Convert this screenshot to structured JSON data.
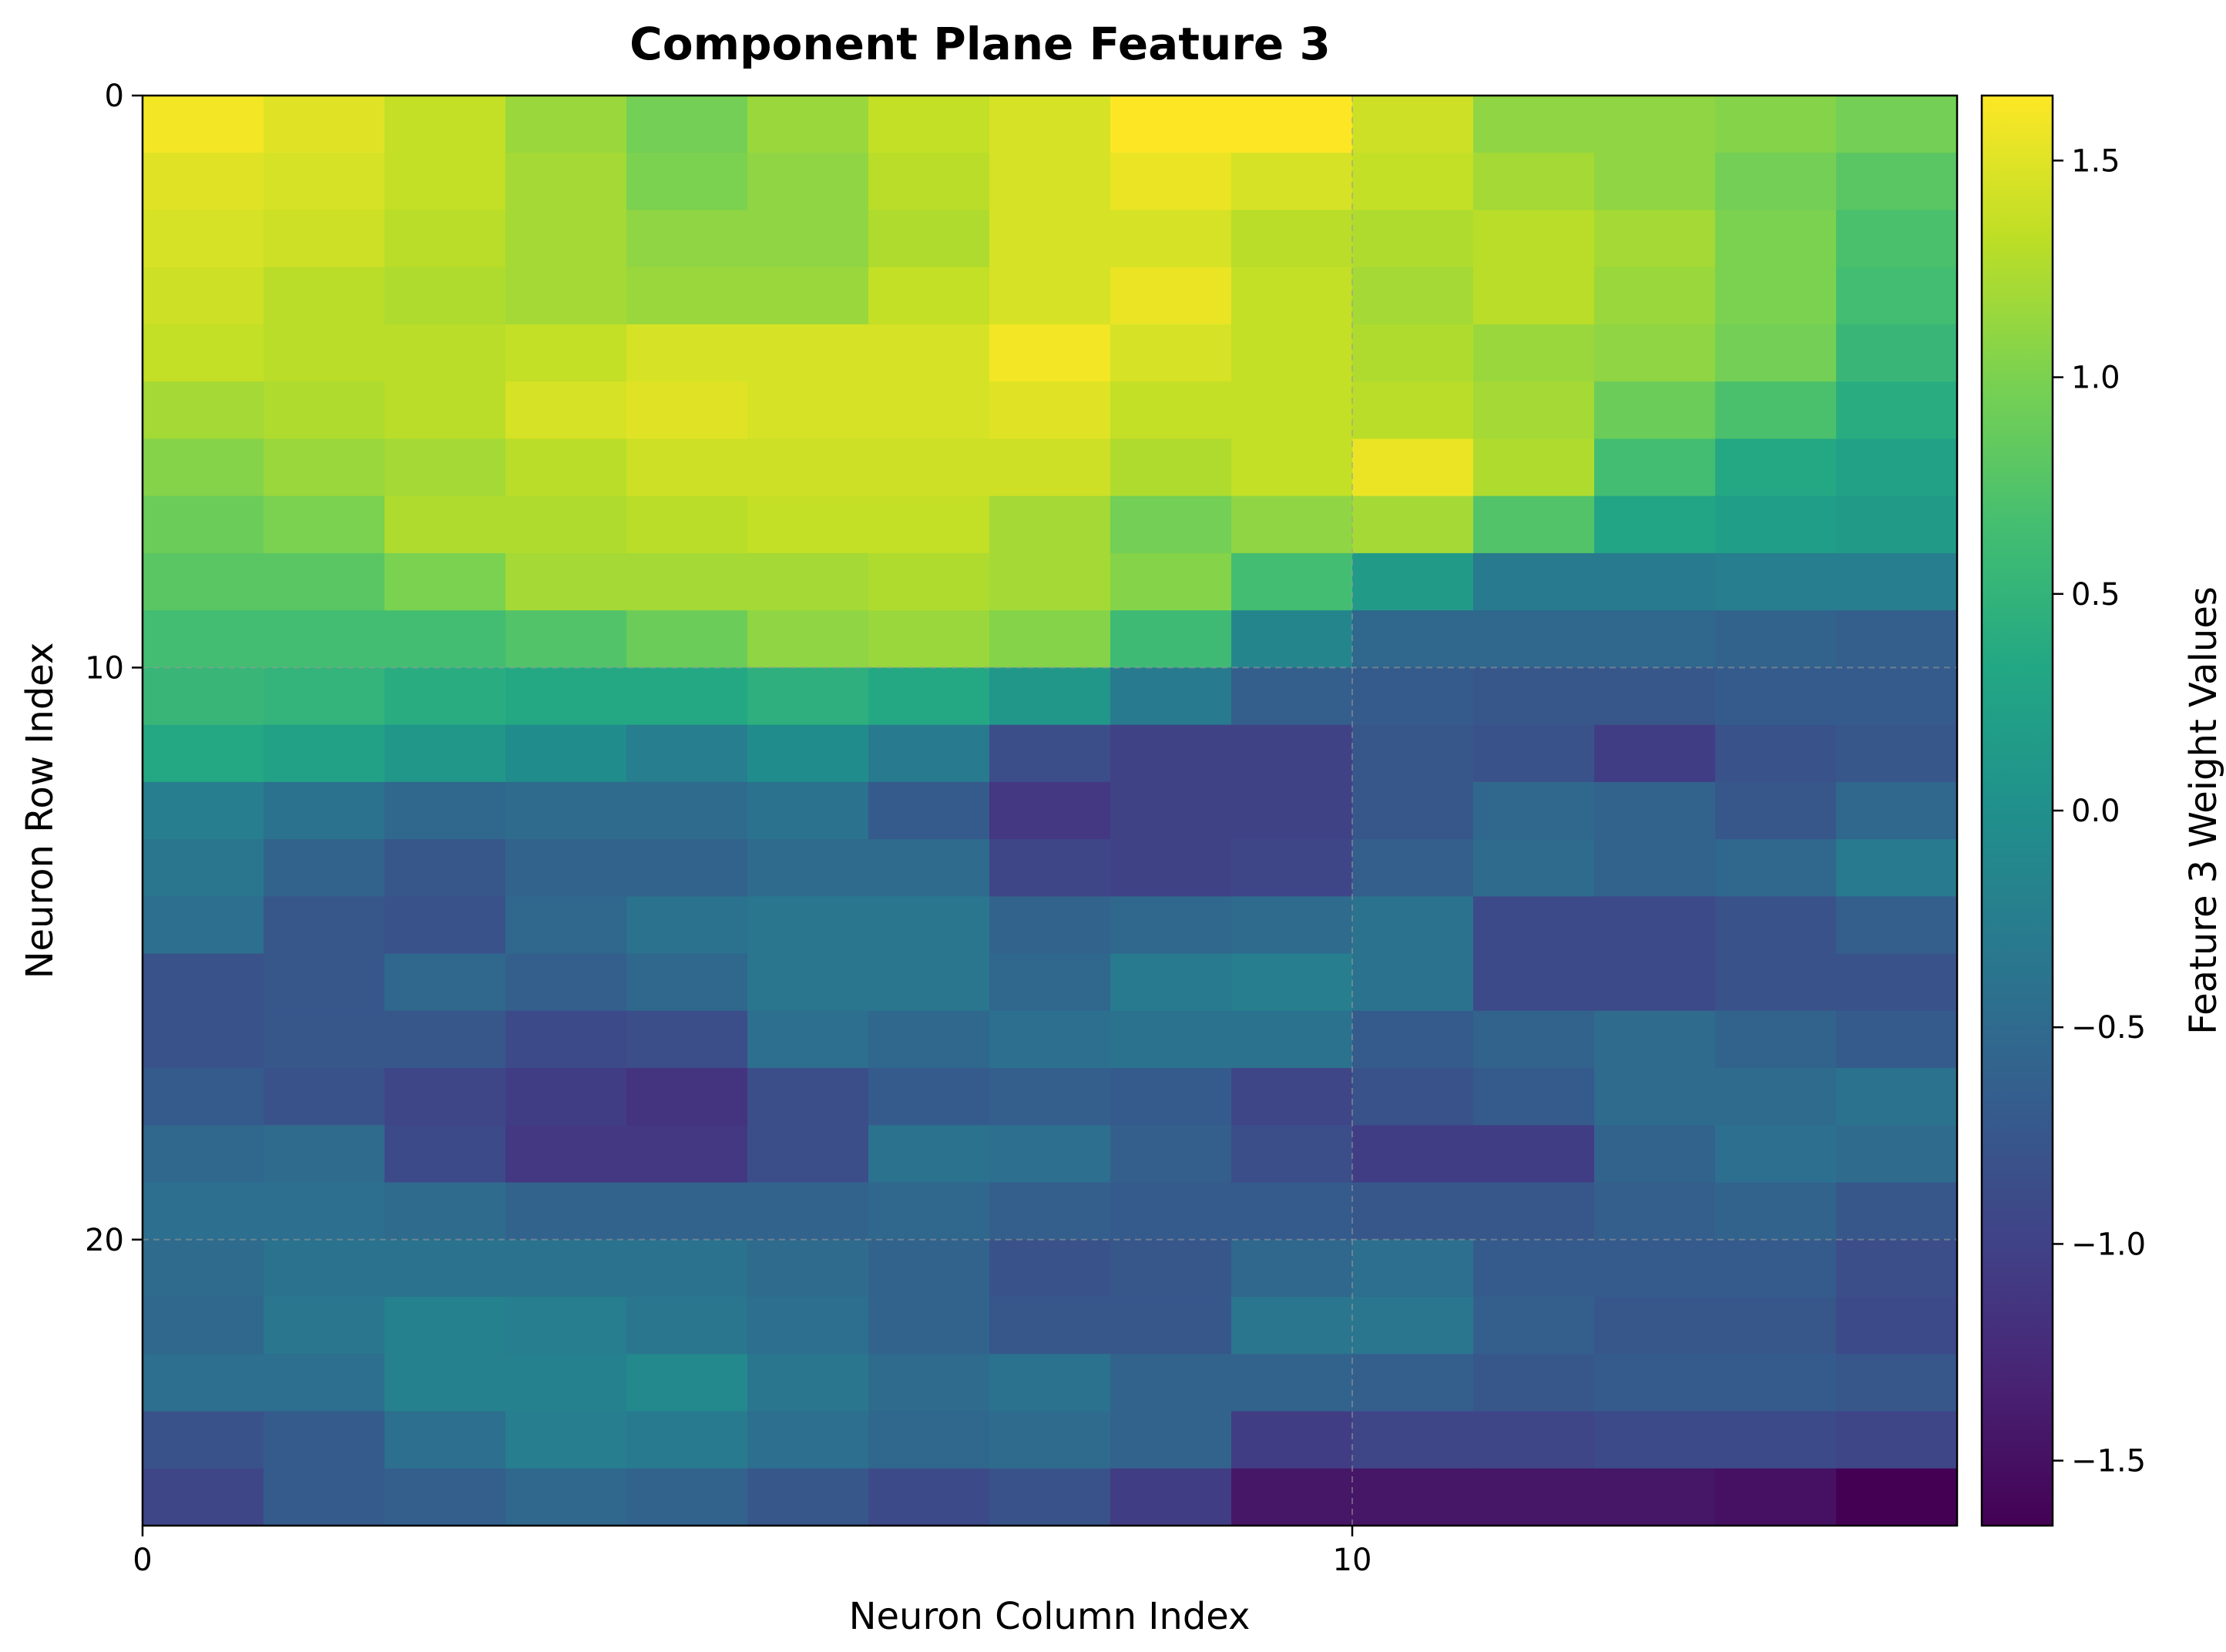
{
  "chart_data": {
    "type": "heatmap",
    "title": "Component Plane Feature 3",
    "xlabel": "Neuron Column Index",
    "ylabel": "Neuron Row Index",
    "colorbar_label": "Feature 3 Weight Values",
    "colormap": "viridis",
    "vmin": -1.65,
    "vmax": 1.65,
    "rows": 25,
    "cols": 15,
    "x_ticks": [
      0,
      10
    ],
    "y_ticks": [
      0,
      10,
      20
    ],
    "colorbar_ticks": [
      "1.5",
      "1.0",
      "0.5",
      "0.0",
      "−0.5",
      "−1.0",
      "−1.5"
    ],
    "colorbar_tick_values": [
      1.5,
      1.0,
      0.5,
      0.0,
      -0.5,
      -1.0,
      -1.5
    ],
    "grid": true,
    "values": [
      [
        1.6,
        1.5,
        1.35,
        1.15,
        0.95,
        1.15,
        1.35,
        1.45,
        1.65,
        1.65,
        1.4,
        1.1,
        1.1,
        1.05,
        0.95
      ],
      [
        1.5,
        1.45,
        1.35,
        1.2,
        1.0,
        1.1,
        1.3,
        1.45,
        1.55,
        1.45,
        1.35,
        1.2,
        1.1,
        0.95,
        0.8
      ],
      [
        1.45,
        1.4,
        1.3,
        1.2,
        1.1,
        1.1,
        1.25,
        1.45,
        1.45,
        1.3,
        1.25,
        1.3,
        1.2,
        1.0,
        0.7
      ],
      [
        1.4,
        1.3,
        1.25,
        1.2,
        1.15,
        1.15,
        1.35,
        1.45,
        1.55,
        1.35,
        1.2,
        1.3,
        1.15,
        1.0,
        0.65
      ],
      [
        1.35,
        1.3,
        1.3,
        1.35,
        1.45,
        1.45,
        1.45,
        1.6,
        1.45,
        1.35,
        1.25,
        1.15,
        1.1,
        0.95,
        0.55
      ],
      [
        1.2,
        1.25,
        1.3,
        1.45,
        1.5,
        1.45,
        1.45,
        1.5,
        1.35,
        1.35,
        1.3,
        1.2,
        0.9,
        0.7,
        0.4
      ],
      [
        1.05,
        1.15,
        1.2,
        1.3,
        1.4,
        1.4,
        1.4,
        1.4,
        1.25,
        1.35,
        1.55,
        1.25,
        0.65,
        0.35,
        0.25
      ],
      [
        0.9,
        1.0,
        1.25,
        1.25,
        1.3,
        1.35,
        1.35,
        1.2,
        0.95,
        1.1,
        1.2,
        0.75,
        0.3,
        0.2,
        0.15
      ],
      [
        0.8,
        0.8,
        1.0,
        1.2,
        1.2,
        1.2,
        1.25,
        1.2,
        1.05,
        0.65,
        0.15,
        -0.3,
        -0.3,
        -0.25,
        -0.25
      ],
      [
        0.65,
        0.65,
        0.65,
        0.75,
        0.9,
        1.1,
        1.15,
        1.05,
        0.6,
        -0.15,
        -0.55,
        -0.55,
        -0.55,
        -0.6,
        -0.65
      ],
      [
        0.55,
        0.5,
        0.4,
        0.35,
        0.35,
        0.45,
        0.35,
        0.1,
        -0.3,
        -0.65,
        -0.7,
        -0.75,
        -0.75,
        -0.7,
        -0.7
      ],
      [
        0.35,
        0.25,
        0.1,
        -0.05,
        -0.25,
        -0.05,
        -0.3,
        -0.85,
        -1.0,
        -1.0,
        -0.75,
        -0.8,
        -1.05,
        -0.8,
        -0.75
      ],
      [
        -0.25,
        -0.4,
        -0.55,
        -0.5,
        -0.5,
        -0.4,
        -0.7,
        -1.1,
        -1.0,
        -1.0,
        -0.75,
        -0.55,
        -0.6,
        -0.75,
        -0.55
      ],
      [
        -0.35,
        -0.6,
        -0.75,
        -0.6,
        -0.6,
        -0.5,
        -0.5,
        -0.95,
        -1.0,
        -0.95,
        -0.65,
        -0.5,
        -0.6,
        -0.55,
        -0.3
      ],
      [
        -0.45,
        -0.75,
        -0.8,
        -0.55,
        -0.4,
        -0.35,
        -0.35,
        -0.6,
        -0.55,
        -0.5,
        -0.4,
        -0.9,
        -0.9,
        -0.8,
        -0.65
      ],
      [
        -0.8,
        -0.75,
        -0.55,
        -0.65,
        -0.55,
        -0.35,
        -0.35,
        -0.55,
        -0.3,
        -0.25,
        -0.4,
        -0.9,
        -0.9,
        -0.8,
        -0.8
      ],
      [
        -0.8,
        -0.75,
        -0.75,
        -0.9,
        -0.85,
        -0.45,
        -0.55,
        -0.45,
        -0.4,
        -0.4,
        -0.7,
        -0.6,
        -0.5,
        -0.6,
        -0.7
      ],
      [
        -0.7,
        -0.8,
        -0.95,
        -1.05,
        -1.15,
        -0.85,
        -0.7,
        -0.65,
        -0.7,
        -0.95,
        -0.8,
        -0.7,
        -0.5,
        -0.5,
        -0.4
      ],
      [
        -0.55,
        -0.5,
        -0.9,
        -1.1,
        -1.1,
        -0.85,
        -0.4,
        -0.45,
        -0.65,
        -0.85,
        -1.05,
        -1.05,
        -0.6,
        -0.45,
        -0.5
      ],
      [
        -0.45,
        -0.45,
        -0.5,
        -0.6,
        -0.6,
        -0.6,
        -0.55,
        -0.65,
        -0.7,
        -0.7,
        -0.75,
        -0.75,
        -0.65,
        -0.6,
        -0.75
      ],
      [
        -0.5,
        -0.4,
        -0.4,
        -0.4,
        -0.4,
        -0.5,
        -0.6,
        -0.8,
        -0.75,
        -0.55,
        -0.45,
        -0.7,
        -0.7,
        -0.7,
        -0.85
      ],
      [
        -0.55,
        -0.35,
        -0.2,
        -0.25,
        -0.35,
        -0.45,
        -0.6,
        -0.75,
        -0.75,
        -0.35,
        -0.35,
        -0.65,
        -0.75,
        -0.75,
        -0.9
      ],
      [
        -0.45,
        -0.45,
        -0.2,
        -0.2,
        -0.1,
        -0.35,
        -0.5,
        -0.4,
        -0.6,
        -0.6,
        -0.65,
        -0.75,
        -0.7,
        -0.7,
        -0.75
      ],
      [
        -0.8,
        -0.7,
        -0.45,
        -0.25,
        -0.3,
        -0.45,
        -0.55,
        -0.5,
        -0.6,
        -1.05,
        -0.95,
        -0.95,
        -0.9,
        -0.9,
        -0.95
      ],
      [
        -0.95,
        -0.7,
        -0.65,
        -0.55,
        -0.6,
        -0.75,
        -0.9,
        -0.8,
        -1.05,
        -1.45,
        -1.45,
        -1.45,
        -1.45,
        -1.5,
        -1.65
      ]
    ]
  }
}
